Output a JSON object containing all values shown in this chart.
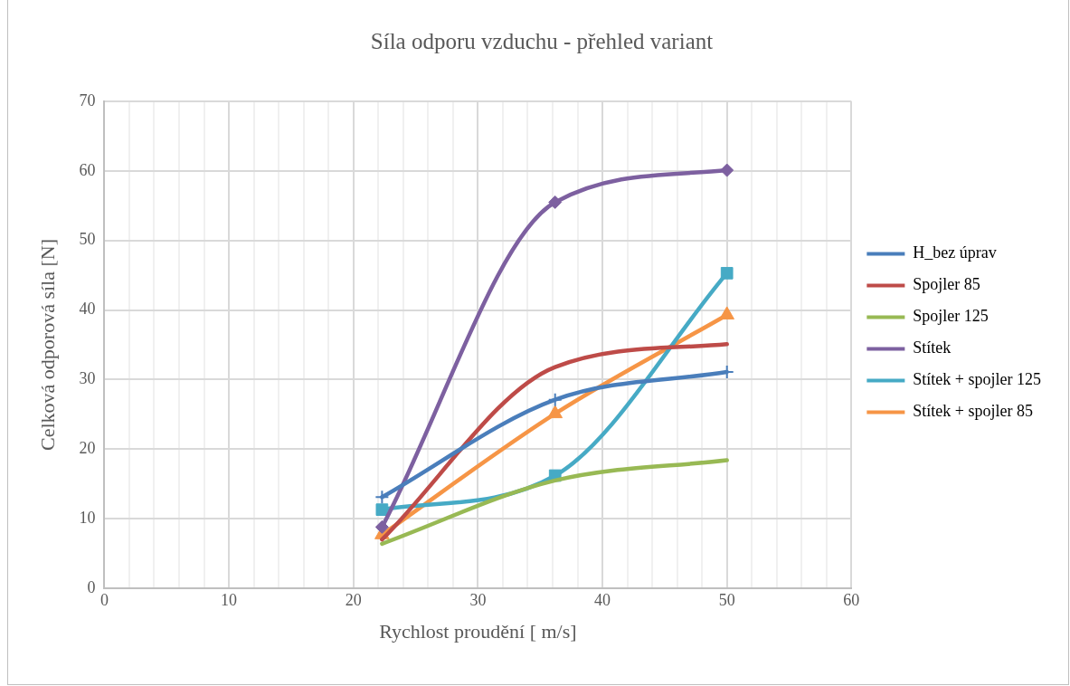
{
  "chart_data": {
    "type": "line",
    "title": "Síla odporu vzduchu - přehled variant",
    "xlabel": "Rychlost proudění [ m/s]",
    "ylabel": "Celková odporová síla [N]",
    "x": [
      22.3,
      36.2,
      50
    ],
    "xlim": [
      0,
      60
    ],
    "xticks": [
      0,
      {
        "value": 2,
        "label": null
      },
      {
        "value": 4,
        "label": null
      },
      {
        "value": 6,
        "label": null
      },
      {
        "value": 8,
        "label": null
      },
      10,
      {
        "value": 12,
        "label": null
      },
      {
        "value": 14,
        "label": null
      },
      {
        "value": 16,
        "label": null
      },
      {
        "value": 18,
        "label": null
      },
      20,
      {
        "value": 22,
        "label": null
      },
      {
        "value": 24,
        "label": null
      },
      {
        "value": 26,
        "label": null
      },
      {
        "value": 28,
        "label": null
      },
      30,
      {
        "value": 32,
        "label": null
      },
      {
        "value": 34,
        "label": null
      },
      {
        "value": 36,
        "label": null
      },
      {
        "value": 38,
        "label": null
      },
      40,
      {
        "value": 42,
        "label": null
      },
      {
        "value": 44,
        "label": null
      },
      {
        "value": 46,
        "label": null
      },
      {
        "value": 48,
        "label": null
      },
      50,
      {
        "value": 52,
        "label": null
      },
      {
        "value": 54,
        "label": null
      },
      {
        "value": 56,
        "label": null
      },
      {
        "value": 58,
        "label": null
      },
      60
    ],
    "ylim": [
      0,
      70
    ],
    "yticks": [
      0,
      10,
      20,
      30,
      40,
      50,
      60,
      70
    ],
    "grid": true,
    "legend": "right",
    "series": [
      {
        "name": "H_bez úprav",
        "color": "#4a7ebb",
        "marker": "cross",
        "values": [
          13.1,
          27.1,
          31.1
        ]
      },
      {
        "name": "Spojler 85",
        "color": "#be4b48",
        "marker": "none",
        "values": [
          7,
          31.8,
          35.1
        ]
      },
      {
        "name": "Spojler 125",
        "color": "#98b954",
        "marker": "none",
        "values": [
          6.4,
          15.5,
          18.4
        ]
      },
      {
        "name": "Stítek",
        "color": "#7d60a0",
        "marker": "diamond",
        "values": [
          8.8,
          55.5,
          60.1
        ]
      },
      {
        "name": "Stítek + spojler 125",
        "color": "#46aac5",
        "marker": "square",
        "values": [
          11.3,
          16.2,
          45.3
        ]
      },
      {
        "name": "Stítek + spojler 85",
        "color": "#f69546",
        "marker": "triangle",
        "values": [
          7.7,
          25.1,
          39.3
        ]
      }
    ]
  }
}
